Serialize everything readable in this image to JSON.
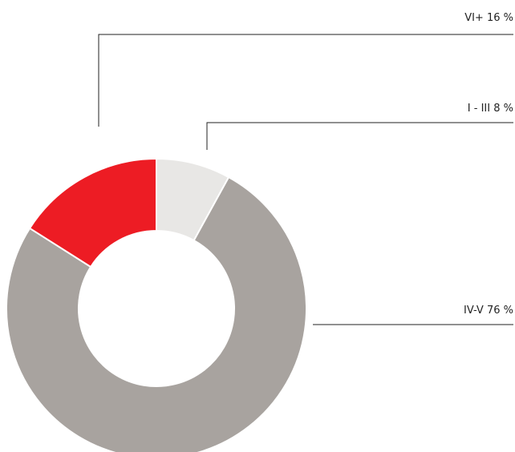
{
  "chart_data": {
    "type": "pie",
    "categories": [
      "I - III",
      "IV-V",
      "VI+"
    ],
    "values": [
      8,
      76,
      16
    ],
    "value_labels": [
      "8 %",
      "76 %",
      "16 %"
    ],
    "colors": [
      "#e8e7e5",
      "#a8a39f",
      "#ed1c24"
    ]
  }
}
